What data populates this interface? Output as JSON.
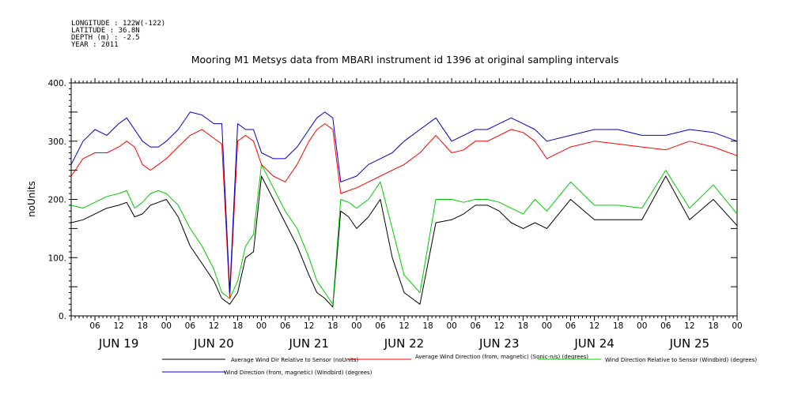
{
  "metadata": {
    "longitude": "LONGITUDE : 122W(-122)",
    "latitude": "LATITUDE : 36.8N",
    "depth": "DEPTH (m) : -2.5",
    "year": "YEAR : 2011"
  },
  "chart_data": {
    "type": "line",
    "title": "Mooring M1 Metsys data from MBARI instrument id 1396 at original sampling intervals",
    "ylabel": "noUnits",
    "xlabel": "",
    "ylim": [
      0,
      400
    ],
    "y_ticks": [
      "0.",
      "100.",
      "200.",
      "300.",
      "400."
    ],
    "x_range_hours": [
      0,
      168
    ],
    "hour_labels": [
      "06",
      "12",
      "18",
      "00",
      "06",
      "12",
      "18",
      "00",
      "06",
      "12",
      "18",
      "00",
      "06",
      "12",
      "18",
      "00",
      "06",
      "12",
      "18",
      "00",
      "06",
      "12",
      "18",
      "00",
      "06",
      "12",
      "18",
      "00"
    ],
    "day_labels": [
      "JUN 19",
      "JUN 20",
      "JUN 21",
      "JUN 22",
      "JUN 23",
      "JUN 24",
      "JUN 25"
    ],
    "grid": false,
    "legend_position": "bottom",
    "series": [
      {
        "name": "Average Wind Dir Relative to Sensor (noUnits)",
        "color": "#000000",
        "x": [
          0,
          3,
          6,
          9,
          12,
          14,
          16,
          18,
          20,
          22,
          24,
          27,
          30,
          33,
          36,
          38,
          40,
          42,
          44,
          46,
          48,
          51,
          54,
          57,
          60,
          62,
          64,
          66,
          68,
          70,
          72,
          75,
          78,
          81,
          84,
          88,
          92,
          96,
          99,
          102,
          105,
          108,
          111,
          114,
          117,
          120,
          126,
          132,
          138,
          144,
          150,
          156,
          162,
          168
        ],
        "values": [
          160,
          165,
          175,
          185,
          190,
          195,
          170,
          175,
          190,
          195,
          200,
          170,
          120,
          90,
          60,
          30,
          20,
          40,
          100,
          110,
          240,
          200,
          160,
          120,
          70,
          40,
          30,
          15,
          180,
          170,
          150,
          170,
          200,
          100,
          40,
          20,
          160,
          165,
          175,
          190,
          190,
          180,
          160,
          150,
          160,
          150,
          200,
          165,
          165,
          165,
          240,
          165,
          200,
          155
        ]
      },
      {
        "name": "Average Wind Direction (from, magnetic) (Sonic-n/s) (degrees)",
        "color": "#ff0000",
        "x": [
          0,
          3,
          6,
          9,
          12,
          14,
          16,
          18,
          20,
          22,
          24,
          27,
          30,
          33,
          36,
          38,
          40,
          42,
          44,
          46,
          48,
          51,
          54,
          57,
          60,
          62,
          64,
          66,
          68,
          70,
          72,
          75,
          78,
          81,
          84,
          88,
          92,
          96,
          99,
          102,
          105,
          108,
          111,
          114,
          117,
          120,
          126,
          132,
          138,
          144,
          150,
          156,
          162,
          168
        ],
        "values": [
          240,
          270,
          280,
          280,
          290,
          300,
          290,
          260,
          250,
          260,
          270,
          290,
          310,
          320,
          305,
          295,
          30,
          300,
          310,
          300,
          260,
          240,
          230,
          260,
          300,
          320,
          330,
          320,
          210,
          215,
          220,
          230,
          240,
          250,
          260,
          280,
          310,
          280,
          285,
          300,
          300,
          310,
          320,
          315,
          300,
          270,
          290,
          300,
          295,
          290,
          285,
          300,
          290,
          275
        ]
      },
      {
        "name": "Wind Direction Relative to Sensor (Windbird) (degrees)",
        "color": "#00cc00",
        "x": [
          0,
          3,
          6,
          9,
          12,
          14,
          16,
          18,
          20,
          22,
          24,
          27,
          30,
          33,
          36,
          38,
          40,
          42,
          44,
          46,
          48,
          51,
          54,
          57,
          60,
          62,
          64,
          66,
          68,
          70,
          72,
          75,
          78,
          81,
          84,
          88,
          92,
          96,
          99,
          102,
          105,
          108,
          111,
          114,
          117,
          120,
          126,
          132,
          138,
          144,
          150,
          156,
          162,
          168
        ],
        "values": [
          190,
          185,
          195,
          205,
          210,
          215,
          185,
          195,
          210,
          215,
          210,
          190,
          150,
          120,
          80,
          40,
          30,
          60,
          120,
          140,
          260,
          220,
          180,
          150,
          100,
          60,
          40,
          20,
          200,
          195,
          185,
          200,
          230,
          150,
          70,
          40,
          200,
          200,
          195,
          200,
          200,
          195,
          185,
          175,
          200,
          180,
          230,
          190,
          190,
          185,
          250,
          185,
          225,
          175
        ]
      },
      {
        "name": "Wind Direction (from, magnetic) (Windbird) (degrees)",
        "color": "#0000cc",
        "x": [
          0,
          3,
          6,
          9,
          12,
          14,
          16,
          18,
          20,
          22,
          24,
          27,
          30,
          33,
          36,
          38,
          40,
          42,
          44,
          46,
          48,
          51,
          54,
          57,
          60,
          62,
          64,
          66,
          68,
          70,
          72,
          75,
          78,
          81,
          84,
          88,
          92,
          96,
          99,
          102,
          105,
          108,
          111,
          114,
          117,
          120,
          126,
          132,
          138,
          144,
          150,
          156,
          162,
          168
        ],
        "values": [
          260,
          300,
          320,
          310,
          330,
          340,
          320,
          300,
          290,
          290,
          300,
          320,
          350,
          345,
          330,
          330,
          40,
          330,
          320,
          320,
          280,
          270,
          270,
          290,
          320,
          340,
          350,
          340,
          230,
          235,
          240,
          260,
          270,
          280,
          300,
          320,
          340,
          300,
          310,
          320,
          320,
          330,
          340,
          330,
          320,
          300,
          310,
          320,
          320,
          310,
          310,
          320,
          315,
          300
        ]
      }
    ],
    "legend": [
      {
        "label": "Average Wind Dir Relative to Sensor (noUnits)",
        "color": "#000000"
      },
      {
        "label": "Average Wind Direction (from, magnetic) (Sonic-n/s) (degrees)",
        "color": "#ff0000"
      },
      {
        "label": "Wind Direction Relative to Sensor (Windbird) (degrees)",
        "color": "#00cc00"
      },
      {
        "label": "Wind Direction (from, magnetic) (Windbird) (degrees)",
        "color": "#0000cc"
      }
    ]
  }
}
